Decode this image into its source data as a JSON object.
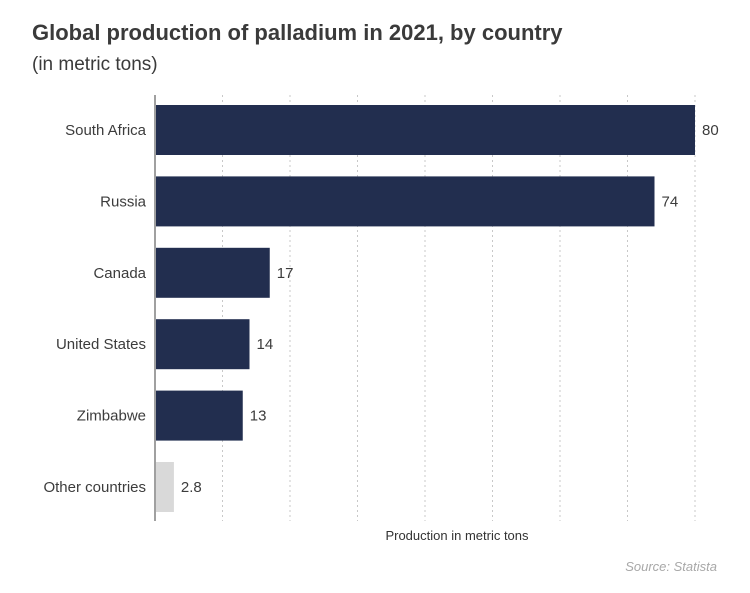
{
  "title": "Global production of palladium in 2021, by country",
  "subtitle": "(in metric tons)",
  "source": "Source: Statista",
  "colors": {
    "bar": "#222e4f",
    "bar_other": "#d9d9d9",
    "grid": "#c8c8c8",
    "axis": "#a0a0a0"
  },
  "chart_data": {
    "type": "bar",
    "orientation": "horizontal",
    "title": "Global production of palladium in 2021, by country",
    "subtitle": "(in metric tons)",
    "xlabel": "Production in metric tons",
    "ylabel": "",
    "categories": [
      "South Africa",
      "Russia",
      "Canada",
      "United States",
      "Zimbabwe",
      "Other countries"
    ],
    "values": [
      80,
      74,
      17,
      14,
      13,
      2.8
    ],
    "value_labels": [
      "80",
      "74",
      "17",
      "14",
      "13",
      "2.8"
    ],
    "xlim": [
      0,
      80
    ],
    "grid": true,
    "grid_style": "dotted-vertical",
    "legend": "none"
  }
}
